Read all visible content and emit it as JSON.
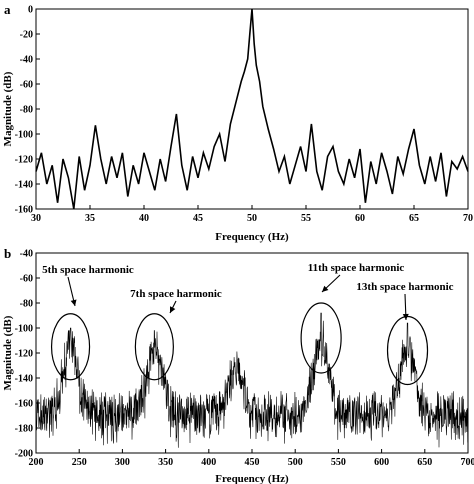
{
  "chart_data": [
    {
      "panel": "a",
      "type": "line",
      "xlabel": "Frequency (Hz)",
      "ylabel": "Magnitude (dB)",
      "xlim": [
        30,
        70
      ],
      "ylim": [
        -160,
        0
      ],
      "xticks": [
        30,
        35,
        40,
        45,
        50,
        55,
        60,
        65,
        70
      ],
      "yticks": [
        0,
        -20,
        -40,
        -60,
        -80,
        -100,
        -120,
        -140,
        -160
      ],
      "series": [
        {
          "x": [
            30,
            30.5,
            31,
            31.5,
            32,
            32.5,
            33,
            33.5,
            34,
            34.5,
            35,
            35.5,
            36,
            36.5,
            37,
            37.5,
            38,
            38.5,
            39,
            39.5,
            40,
            40.5,
            41,
            41.5,
            42,
            42.5,
            43,
            43.5,
            44,
            44.5,
            45,
            45.5,
            46,
            46.5,
            47,
            47.5,
            48,
            48.5,
            49,
            49.3,
            49.6,
            49.8,
            50,
            50.2,
            50.4,
            50.7,
            51,
            51.5,
            52,
            52.5,
            53,
            53.5,
            54,
            54.5,
            55,
            55.5,
            56,
            56.5,
            57,
            57.5,
            58,
            58.5,
            59,
            59.5,
            60,
            60.5,
            61,
            61.5,
            62,
            62.5,
            63,
            63.5,
            64,
            64.5,
            65,
            65.5,
            66,
            66.5,
            67,
            67.5,
            68,
            68.5,
            69,
            69.5,
            70
          ],
          "y": [
            -130,
            -115,
            -140,
            -125,
            -155,
            -120,
            -135,
            -160,
            -118,
            -145,
            -125,
            -93,
            -120,
            -140,
            -118,
            -135,
            -115,
            -150,
            -125,
            -140,
            -115,
            -130,
            -145,
            -120,
            -138,
            -110,
            -84,
            -125,
            -145,
            -118,
            -135,
            -115,
            -128,
            -110,
            -100,
            -122,
            -92,
            -75,
            -58,
            -50,
            -40,
            -20,
            0,
            -28,
            -45,
            -58,
            -78,
            -96,
            -112,
            -130,
            -118,
            -140,
            -125,
            -110,
            -130,
            -92,
            -130,
            -145,
            -118,
            -110,
            -130,
            -140,
            -120,
            -135,
            -112,
            -155,
            -122,
            -140,
            -115,
            -130,
            -148,
            -118,
            -132,
            -112,
            -96,
            -125,
            -140,
            -118,
            -138,
            -115,
            -150,
            -122,
            -128,
            -118,
            -130
          ]
        }
      ]
    },
    {
      "panel": "b",
      "type": "line",
      "xlabel": "Frequency (Hz)",
      "ylabel": "Magnitude (dB)",
      "xlim": [
        200,
        700
      ],
      "ylim": [
        -200,
        -40
      ],
      "xticks": [
        200,
        250,
        300,
        350,
        400,
        450,
        500,
        550,
        600,
        650,
        700
      ],
      "yticks": [
        -40,
        -60,
        -80,
        -100,
        -120,
        -140,
        -160,
        -180,
        -200
      ],
      "noise_floor_db": -165,
      "peaks": [
        {
          "x": 240,
          "y": -100
        },
        {
          "x": 337,
          "y": -102
        },
        {
          "x": 431,
          "y": -136
        },
        {
          "x": 530,
          "y": -88
        },
        {
          "x": 630,
          "y": -96
        }
      ],
      "annotations": [
        {
          "text": "5th space harmonic",
          "x": 240,
          "y": -115
        },
        {
          "text": "7th space harmonic",
          "x": 337,
          "y": -115
        },
        {
          "text": "11th space harmonic",
          "x": 530,
          "y": -108
        },
        {
          "text": "13th space harmonic",
          "x": 630,
          "y": -118
        }
      ]
    }
  ]
}
